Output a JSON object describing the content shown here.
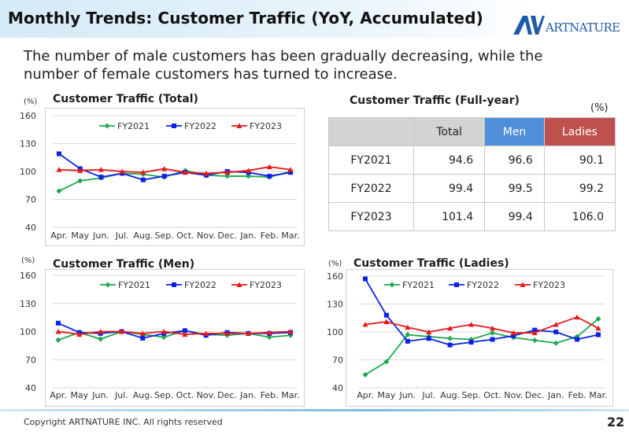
{
  "page": {
    "title": "Monthly Trends: Customer Traffic (YoY, Accumulated)",
    "logo_text": "ARTNATURE",
    "headline": "The number of male customers has been gradually decreasing, while the number of female customers has turned to increase.",
    "copyright": "Copyright ARTNATURE INC. All rights reserved",
    "page_number": "22"
  },
  "colors": {
    "FY2021": "#1ea84f",
    "FY2022": "#0a22e6",
    "FY2023": "#e61919"
  },
  "table": {
    "title": "Customer Traffic (Full-year)",
    "unit": "(%)",
    "headers": [
      "Total",
      "Men",
      "Ladies"
    ],
    "rows": [
      {
        "label": "FY2021",
        "values": [
          "94.6",
          "96.6",
          "90.1"
        ]
      },
      {
        "label": "FY2022",
        "values": [
          "99.4",
          "99.5",
          "99.2"
        ]
      },
      {
        "label": "FY2023",
        "values": [
          "101.4",
          "99.4",
          "106.0"
        ]
      }
    ]
  },
  "chart_data": [
    {
      "id": "total",
      "type": "line",
      "title": "Customer Traffic (Total)",
      "unit": "(%)",
      "categories": [
        "Apr.",
        "May",
        "Jun.",
        "Jul.",
        "Aug.",
        "Sep.",
        "Oct.",
        "Nov.",
        "Dec.",
        "Jan.",
        "Feb.",
        "Mar."
      ],
      "ylim": [
        40,
        160
      ],
      "yticks": [
        40,
        70,
        100,
        130,
        160
      ],
      "legend": "top",
      "series": [
        {
          "name": "FY2021",
          "values": [
            79,
            90,
            93,
            98,
            97,
            94,
            101,
            96,
            95,
            95,
            94,
            100
          ]
        },
        {
          "name": "FY2022",
          "values": [
            119,
            103,
            94,
            98,
            91,
            95,
            99,
            96,
            100,
            99,
            95,
            99
          ]
        },
        {
          "name": "FY2023",
          "values": [
            102,
            101,
            102,
            100,
            99,
            103,
            99,
            98,
            99,
            101,
            105,
            102
          ]
        }
      ]
    },
    {
      "id": "men",
      "type": "line",
      "title": "Customer Traffic (Men)",
      "unit": "(%)",
      "categories": [
        "Apr.",
        "May",
        "Jun.",
        "Jul.",
        "Aug.",
        "Sep.",
        "Oct.",
        "Nov.",
        "Dec.",
        "Jan.",
        "Feb.",
        "Mar."
      ],
      "ylim": [
        40,
        160
      ],
      "yticks": [
        40,
        70,
        100,
        130,
        160
      ],
      "legend": "top",
      "series": [
        {
          "name": "FY2021",
          "values": [
            91,
            99,
            92,
            100,
            97,
            94,
            101,
            97,
            96,
            98,
            94,
            96
          ]
        },
        {
          "name": "FY2022",
          "values": [
            109,
            99,
            98,
            100,
            93,
            98,
            101,
            96,
            99,
            98,
            98,
            99
          ]
        },
        {
          "name": "FY2023",
          "values": [
            100,
            97,
            100,
            100,
            98,
            100,
            97,
            98,
            98,
            98,
            99,
            100
          ]
        }
      ]
    },
    {
      "id": "ladies",
      "type": "line",
      "title": "Customer Traffic (Ladies)",
      "unit": "(%)",
      "categories": [
        "Apr.",
        "May",
        "Jun.",
        "Jul.",
        "Aug.",
        "Sep.",
        "Oct.",
        "Nov.",
        "Dec.",
        "Jan.",
        "Feb.",
        "Mar."
      ],
      "ylim": [
        40,
        160
      ],
      "yticks": [
        40,
        70,
        100,
        130,
        160
      ],
      "legend": "top",
      "series": [
        {
          "name": "FY2021",
          "values": [
            54,
            68,
            97,
            95,
            93,
            92,
            99,
            94,
            91,
            88,
            95,
            114
          ]
        },
        {
          "name": "FY2022",
          "values": [
            157,
            118,
            90,
            93,
            86,
            89,
            92,
            96,
            102,
            100,
            92,
            97
          ]
        },
        {
          "name": "FY2023",
          "values": [
            108,
            111,
            105,
            100,
            104,
            108,
            104,
            99,
            99,
            108,
            116,
            104
          ]
        }
      ]
    }
  ]
}
